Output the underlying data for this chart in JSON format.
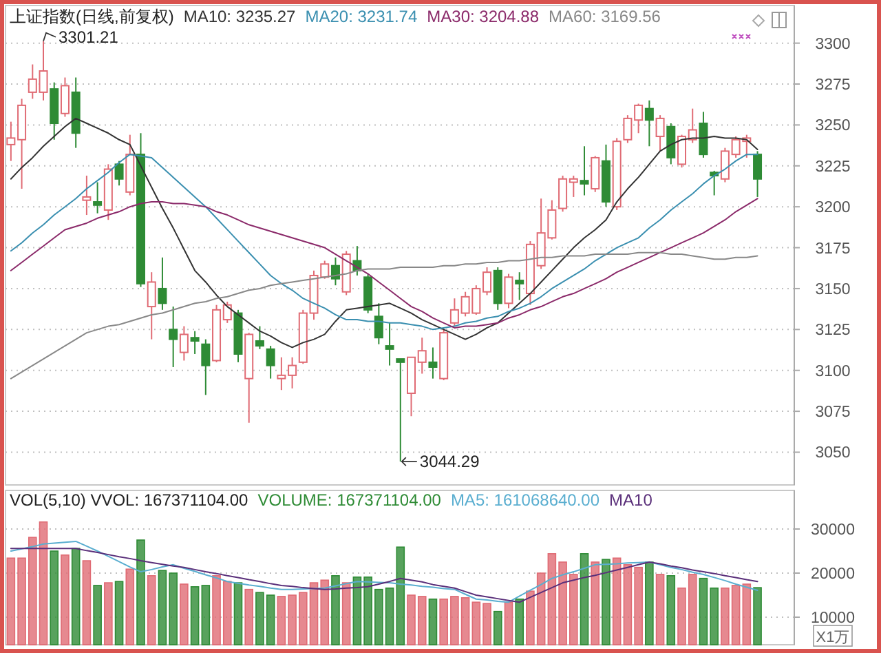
{
  "chart_data": [
    {
      "type": "candlestick",
      "title": "上证指数(日线,前复权)",
      "legend": "top",
      "grid": "y",
      "tick_labels": "y",
      "ylim": [
        3030,
        3323
      ],
      "yticks": [
        3050,
        3075,
        3100,
        3125,
        3150,
        3175,
        3200,
        3225,
        3250,
        3275,
        3300
      ],
      "categories": [
        null,
        null,
        null,
        null,
        null,
        null,
        null,
        null,
        null,
        null,
        null,
        null,
        null,
        null,
        null,
        null,
        null,
        null,
        null,
        null,
        null,
        null,
        null,
        null,
        null,
        null,
        null,
        null,
        null,
        null,
        null,
        null,
        null,
        null,
        null,
        null,
        null,
        null,
        null,
        null,
        null,
        null,
        null,
        null,
        null,
        null,
        null,
        null,
        null,
        null,
        null,
        null,
        null,
        null,
        null,
        null,
        null,
        null,
        null,
        null,
        null,
        null,
        null,
        null,
        null,
        null,
        null,
        null,
        null,
        null
      ],
      "ohlc": [
        [
          3238,
          3252,
          3228,
          3242
        ],
        [
          3241,
          3266,
          3211,
          3262
        ],
        [
          3270,
          3287,
          3266,
          3278
        ],
        [
          3270,
          3301.21,
          3265,
          3283
        ],
        [
          3272,
          3276,
          3241,
          3251
        ],
        [
          3257,
          3279,
          3255,
          3274
        ],
        [
          3270,
          3279,
          3236,
          3245
        ],
        [
          3204,
          3219,
          3195,
          3206
        ],
        [
          3203,
          3215,
          3196,
          3201
        ],
        [
          3198,
          3226,
          3192,
          3223
        ],
        [
          3226,
          3228,
          3213,
          3217
        ],
        [
          3209,
          3244,
          3207,
          3232
        ],
        [
          3232,
          3245,
          3151,
          3153
        ],
        [
          3139,
          3160,
          3119,
          3154
        ],
        [
          3150,
          3169,
          3137,
          3141
        ],
        [
          3125,
          3139,
          3102,
          3119
        ],
        [
          3111,
          3127,
          3106,
          3122
        ],
        [
          3120,
          3124,
          3110,
          3118
        ],
        [
          3116,
          3119,
          3085,
          3103
        ],
        [
          3106,
          3140,
          3105,
          3137
        ],
        [
          3131,
          3142,
          3129,
          3140
        ],
        [
          3135,
          3137,
          3105,
          3110
        ],
        [
          3095,
          3123,
          3068,
          3122
        ],
        [
          3118,
          3127,
          3113,
          3115
        ],
        [
          3113,
          3115,
          3095,
          3103
        ],
        [
          3095,
          3108,
          3088,
          3097
        ],
        [
          3097,
          3108,
          3089,
          3103
        ],
        [
          3105,
          3137,
          3104,
          3135
        ],
        [
          3135,
          3161,
          3131,
          3158
        ],
        [
          3157,
          3167,
          3156,
          3165
        ],
        [
          3164,
          3169,
          3152,
          3156
        ],
        [
          3148,
          3173,
          3146,
          3171
        ],
        [
          3167,
          3176,
          3158,
          3161
        ],
        [
          3157,
          3159,
          3135,
          3137
        ],
        [
          3133,
          3141,
          3116,
          3120
        ],
        [
          3115,
          3129,
          3103,
          3113
        ],
        [
          3107,
          3107,
          3044.29,
          3105
        ],
        [
          3086,
          3108,
          3072,
          3108
        ],
        [
          3105,
          3120,
          3098,
          3112
        ],
        [
          3105,
          3114,
          3095,
          3102
        ],
        [
          3095,
          3125,
          3094,
          3123
        ],
        [
          3129,
          3144,
          3127,
          3137
        ],
        [
          3135,
          3148,
          3133,
          3145
        ],
        [
          3135,
          3152,
          3134,
          3150
        ],
        [
          3148,
          3163,
          3146,
          3160
        ],
        [
          3161,
          3163,
          3137,
          3141
        ],
        [
          3141,
          3159,
          3138,
          3157
        ],
        [
          3155,
          3160,
          3143,
          3153
        ],
        [
          3147,
          3179,
          3140,
          3177
        ],
        [
          3164,
          3205,
          3162,
          3184
        ],
        [
          3181,
          3204,
          3180,
          3198
        ],
        [
          3199,
          3219,
          3197,
          3217
        ],
        [
          3215,
          3219,
          3206,
          3217
        ],
        [
          3216,
          3237,
          3207,
          3214
        ],
        [
          3211,
          3231,
          3209,
          3230
        ],
        [
          3228,
          3238,
          3200,
          3203
        ],
        [
          3200,
          3242,
          3198,
          3240
        ],
        [
          3241,
          3256,
          3239,
          3254
        ],
        [
          3253,
          3263,
          3245,
          3262
        ],
        [
          3260,
          3265,
          3237,
          3253
        ],
        [
          3243,
          3256,
          3234,
          3254
        ],
        [
          3249,
          3251,
          3226,
          3230
        ],
        [
          3226,
          3244,
          3224,
          3243
        ],
        [
          3241,
          3260,
          3239,
          3247
        ],
        [
          3251,
          3258,
          3230,
          3232
        ],
        [
          3221,
          3222,
          3207,
          3219
        ],
        [
          3217,
          3236,
          3215,
          3234
        ],
        [
          3232,
          3243,
          3230,
          3241
        ],
        [
          3240,
          3244,
          3230,
          3242
        ],
        [
          3232,
          3234,
          3206,
          3217
        ]
      ],
      "colors": [
        "#e06b74",
        "#e06b74",
        "#e06b74",
        "#e06b74",
        "#2e8b35",
        "#e06b74",
        "#2e8b35",
        "#e06b74",
        "#2e8b35",
        "#e06b74",
        "#2e8b35",
        "#e06b74",
        "#2e8b35",
        "#e06b74",
        "#2e8b35",
        "#2e8b35",
        "#e06b74",
        "#2e8b35",
        "#2e8b35",
        "#e06b74",
        "#e06b74",
        "#2e8b35",
        "#e06b74",
        "#2e8b35",
        "#2e8b35",
        "#e06b74",
        "#e06b74",
        "#e06b74",
        "#e06b74",
        "#e06b74",
        "#2e8b35",
        "#e06b74",
        "#2e8b35",
        "#2e8b35",
        "#2e8b35",
        "#2e8b35",
        "#2e8b35",
        "#e06b74",
        "#e06b74",
        "#2e8b35",
        "#e06b74",
        "#e06b74",
        "#e06b74",
        "#e06b74",
        "#e06b74",
        "#2e8b35",
        "#e06b74",
        "#2e8b35",
        "#e06b74",
        "#e06b74",
        "#e06b74",
        "#e06b74",
        "#e06b74",
        "#2e8b35",
        "#e06b74",
        "#2e8b35",
        "#e06b74",
        "#e06b74",
        "#e06b74",
        "#2e8b35",
        "#e06b74",
        "#2e8b35",
        "#e06b74",
        "#e06b74",
        "#2e8b35",
        "#2e8b35",
        "#e06b74",
        "#e06b74",
        "#e06b74",
        "#2e8b35"
      ],
      "series": [
        {
          "name": "MA10: 3235.27",
          "type": "line",
          "color": "#333333",
          "values": [
            3217,
            3224,
            3230,
            3237,
            3243,
            3249,
            3254,
            3251,
            3248,
            3245,
            3241,
            3238,
            3225,
            3212,
            3199,
            3187,
            3174,
            3161,
            3154,
            3146,
            3139,
            3134,
            3129,
            3124,
            3121,
            3117,
            3114,
            3117,
            3119,
            3122,
            3130,
            3137,
            3138,
            3139,
            3140,
            3141,
            3138,
            3135,
            3131,
            3128,
            3125,
            3122,
            3119,
            3122,
            3126,
            3129,
            3135,
            3141,
            3147,
            3154,
            3161,
            3168,
            3175,
            3181,
            3186,
            3192,
            3203,
            3211,
            3218,
            3226,
            3234,
            3238,
            3241,
            3242,
            3242,
            3243,
            3242,
            3242,
            3241,
            3235
          ]
        },
        {
          "name": "MA20: 3231.74",
          "type": "line",
          "color": "#3a8fb0",
          "values": [
            3173,
            3178,
            3184,
            3189,
            3195,
            3200,
            3205,
            3211,
            3216,
            3221,
            3227,
            3232,
            3231,
            3230,
            3224,
            3218,
            3212,
            3206,
            3200,
            3193,
            3186,
            3179,
            3172,
            3165,
            3158,
            3153,
            3149,
            3144,
            3141,
            3138,
            3134,
            3131,
            3131,
            3130,
            3130,
            3129,
            3129,
            3128,
            3127,
            3125,
            3126,
            3127,
            3129,
            3130,
            3132,
            3133,
            3136,
            3138,
            3141,
            3145,
            3150,
            3154,
            3158,
            3162,
            3167,
            3171,
            3175,
            3178,
            3181,
            3187,
            3192,
            3198,
            3203,
            3208,
            3214,
            3219,
            3223,
            3228,
            3232,
            3232
          ]
        },
        {
          "name": "MA30: 3204.88",
          "type": "line",
          "color": "#8b2a6a",
          "values": [
            3161,
            3166,
            3171,
            3176,
            3181,
            3186,
            3188,
            3190,
            3193,
            3195,
            3197,
            3200,
            3202,
            3203,
            3203,
            3202,
            3202,
            3201,
            3200,
            3197,
            3195,
            3192,
            3189,
            3187,
            3185,
            3183,
            3181,
            3179,
            3177,
            3175,
            3171,
            3167,
            3163,
            3159,
            3154,
            3149,
            3144,
            3139,
            3136,
            3132,
            3129,
            3126,
            3127,
            3127,
            3128,
            3129,
            3132,
            3134,
            3137,
            3139,
            3142,
            3145,
            3147,
            3150,
            3153,
            3156,
            3160,
            3163,
            3166,
            3169,
            3172,
            3175,
            3178,
            3181,
            3184,
            3188,
            3192,
            3197,
            3201,
            3205
          ]
        },
        {
          "name": "MA60: 3169.56",
          "type": "line",
          "color": "#888888",
          "values": [
            3095,
            3099,
            3103,
            3107,
            3111,
            3115,
            3119,
            3123,
            3125,
            3127,
            3128,
            3130,
            3132,
            3134,
            3135,
            3137,
            3139,
            3141,
            3142,
            3144,
            3145,
            3147,
            3149,
            3150,
            3152,
            3153,
            3154,
            3155,
            3156,
            3157,
            3158,
            3159,
            3161,
            3162,
            3162,
            3162,
            3163,
            3163,
            3163,
            3163,
            3164,
            3164,
            3165,
            3165,
            3166,
            3166,
            3167,
            3167,
            3168,
            3169,
            3169,
            3170,
            3170,
            3170,
            3171,
            3171,
            3171,
            3171,
            3172,
            3172,
            3172,
            3171,
            3171,
            3170,
            3169,
            3168,
            3168,
            3169,
            3169,
            3170
          ]
        }
      ],
      "annotations": [
        "3301.21",
        "3044.29"
      ]
    },
    {
      "type": "bar",
      "title": "VOL(5,10) VVOL: 167371104.00",
      "legend": "top",
      "grid": "y",
      "tick_labels": "y",
      "ylim": [
        3750,
        38750
      ],
      "yticks": [
        10000,
        20000,
        30000
      ],
      "categories": [
        null,
        null,
        null,
        null,
        null,
        null,
        null,
        null,
        null,
        null,
        null,
        null,
        null,
        null,
        null,
        null,
        null,
        null,
        null,
        null,
        null,
        null,
        null,
        null,
        null,
        null,
        null,
        null,
        null,
        null,
        null,
        null,
        null,
        null,
        null,
        null,
        null,
        null,
        null,
        null,
        null,
        null,
        null,
        null,
        null,
        null,
        null,
        null,
        null,
        null,
        null,
        null,
        null,
        null,
        null,
        null,
        null,
        null,
        null,
        null,
        null,
        null,
        null,
        null,
        null,
        null,
        null,
        null,
        null,
        null
      ],
      "series": [
        {
          "name": "VOLUME: 167371104.00",
          "type": "bar",
          "colors": [
            "#e06b74",
            "#e06b74",
            "#e06b74",
            "#e06b74",
            "#2e8b35",
            "#e06b74",
            "#2e8b35",
            "#e06b74",
            "#2e8b35",
            "#e06b74",
            "#2e8b35",
            "#e06b74",
            "#2e8b35",
            "#e06b74",
            "#2e8b35",
            "#2e8b35",
            "#e06b74",
            "#2e8b35",
            "#2e8b35",
            "#e06b74",
            "#e06b74",
            "#2e8b35",
            "#e06b74",
            "#2e8b35",
            "#2e8b35",
            "#e06b74",
            "#e06b74",
            "#e06b74",
            "#e06b74",
            "#e06b74",
            "#2e8b35",
            "#e06b74",
            "#2e8b35",
            "#2e8b35",
            "#2e8b35",
            "#2e8b35",
            "#2e8b35",
            "#e06b74",
            "#e06b74",
            "#2e8b35",
            "#e06b74",
            "#e06b74",
            "#e06b74",
            "#e06b74",
            "#e06b74",
            "#2e8b35",
            "#e06b74",
            "#2e8b35",
            "#e06b74",
            "#e06b74",
            "#e06b74",
            "#e06b74",
            "#e06b74",
            "#2e8b35",
            "#e06b74",
            "#2e8b35",
            "#e06b74",
            "#e06b74",
            "#e06b74",
            "#2e8b35",
            "#e06b74",
            "#2e8b35",
            "#e06b74",
            "#e06b74",
            "#2e8b35",
            "#2e8b35",
            "#e06b74",
            "#e06b74",
            "#e06b74",
            "#2e8b35"
          ],
          "values": [
            23400,
            23400,
            28100,
            31600,
            25000,
            24100,
            25600,
            22800,
            17200,
            17800,
            18100,
            20900,
            27500,
            19400,
            20600,
            20000,
            17500,
            16900,
            17200,
            19400,
            18100,
            17800,
            16300,
            15600,
            15000,
            14700,
            15000,
            15600,
            17800,
            18400,
            19400,
            17800,
            19100,
            19100,
            16300,
            16600,
            25900,
            15000,
            14700,
            14100,
            14100,
            14700,
            14400,
            13400,
            13100,
            11300,
            13400,
            14100,
            15900,
            20000,
            24400,
            22500,
            19700,
            24400,
            22500,
            23100,
            23400,
            21900,
            21300,
            22500,
            19700,
            19400,
            16600,
            19700,
            18800,
            16600,
            16600,
            17200,
            17500,
            16700
          ]
        },
        {
          "name": "MA5: 161068640.00",
          "type": "line",
          "color": "#5aaed0",
          "values": [
            25000,
            25500,
            26000,
            26600,
            26800,
            27000,
            27200,
            26100,
            25000,
            23800,
            22600,
            21400,
            20300,
            20800,
            21400,
            21900,
            21100,
            20400,
            19600,
            18900,
            18100,
            17700,
            17300,
            17000,
            16600,
            16300,
            16300,
            16400,
            16500,
            16600,
            17100,
            17600,
            18100,
            18000,
            17900,
            17800,
            17500,
            17300,
            17000,
            16800,
            16500,
            16300,
            15200,
            14100,
            13900,
            13600,
            13400,
            14800,
            16100,
            17400,
            18800,
            19600,
            20300,
            21100,
            21900,
            22000,
            22100,
            22300,
            22400,
            22500,
            21900,
            21300,
            20800,
            20200,
            19700,
            19000,
            18300,
            17500,
            16800,
            16100
          ]
        },
        {
          "name": "MA10",
          "type": "line",
          "color": "#5a2f7a",
          "values": [
            25600,
            25600,
            25600,
            25600,
            25600,
            25600,
            25600,
            25100,
            24700,
            24200,
            23700,
            23300,
            22800,
            22400,
            22000,
            21600,
            21300,
            20800,
            20300,
            19900,
            19400,
            19000,
            18500,
            18100,
            17600,
            17200,
            17000,
            16700,
            16500,
            16300,
            16400,
            16600,
            16700,
            16900,
            17500,
            18100,
            18800,
            18400,
            18000,
            17400,
            17000,
            16600,
            15800,
            15000,
            14600,
            14200,
            13800,
            13400,
            14500,
            15600,
            16700,
            17800,
            18400,
            19000,
            19500,
            20100,
            20700,
            21300,
            21900,
            22500,
            22100,
            21600,
            21200,
            20700,
            20300,
            19900,
            19400,
            19000,
            18500,
            18100
          ]
        }
      ],
      "annotations": [
        "X1万"
      ]
    }
  ]
}
